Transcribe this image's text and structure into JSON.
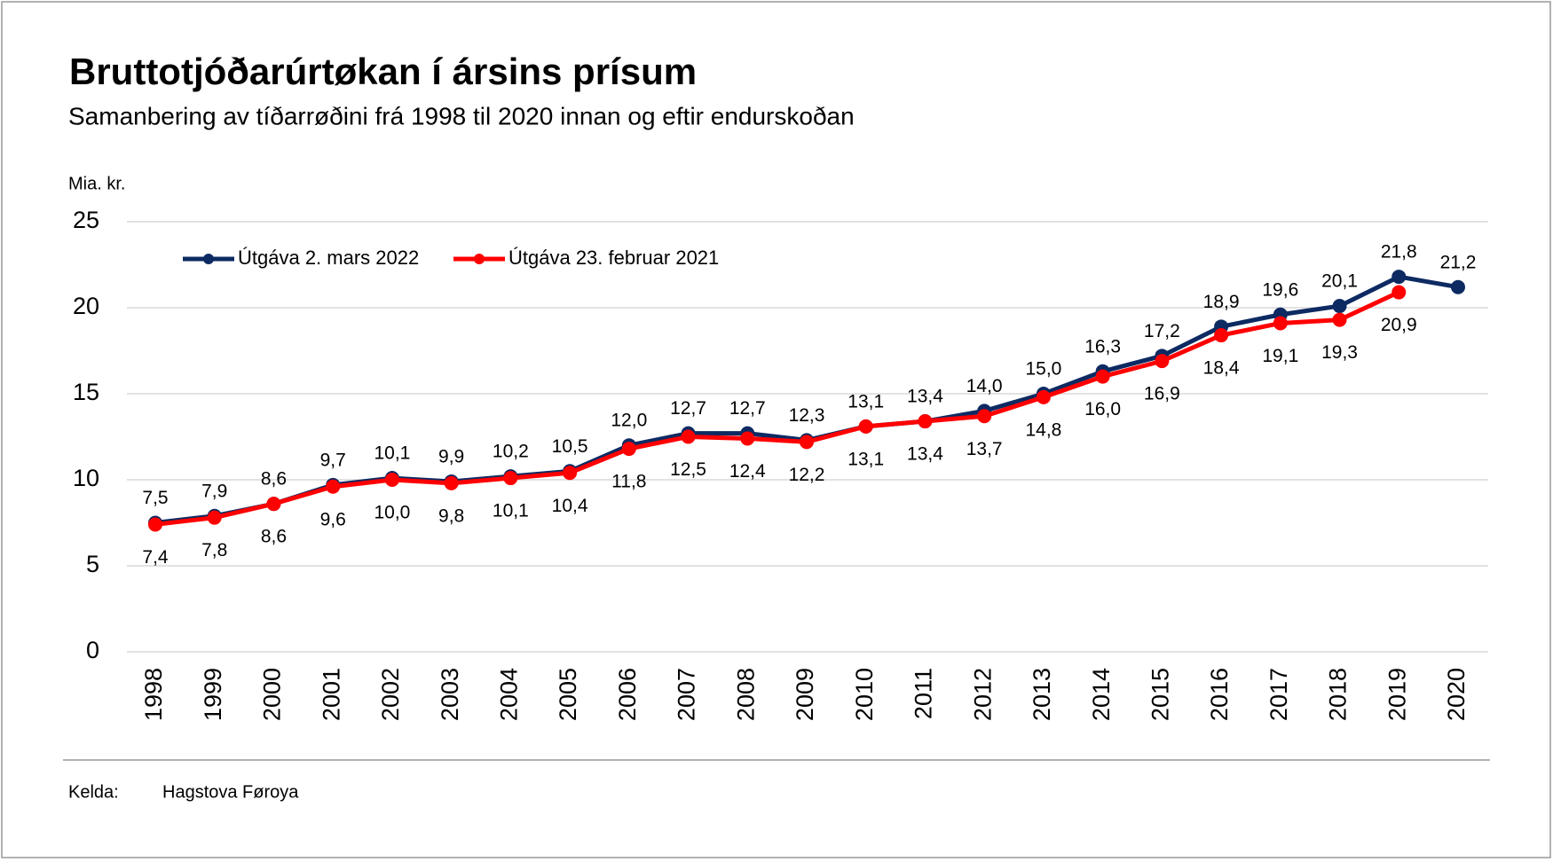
{
  "chart_data": {
    "type": "line",
    "title": "Bruttotjóðarúrtøkan í ársins prísum",
    "subtitle": "Samanbering av tíðarrøðini frá 1998 til 2020 innan og eftir endurskoðan",
    "y_label": "Mia. kr.",
    "categories": [
      "1998",
      "1999",
      "2000",
      "2001",
      "2002",
      "2003",
      "2004",
      "2005",
      "2006",
      "2007",
      "2008",
      "2009",
      "2010",
      "2011",
      "2012",
      "2013",
      "2014",
      "2015",
      "2016",
      "2017",
      "2018",
      "2019",
      "2020"
    ],
    "series": [
      {
        "name": "Útgáva 2. mars 2022",
        "color": "#0d2a62",
        "values": [
          7.5,
          7.9,
          8.6,
          9.7,
          10.1,
          9.9,
          10.2,
          10.5,
          12.0,
          12.7,
          12.7,
          12.3,
          13.1,
          13.4,
          14.0,
          15.0,
          16.3,
          17.2,
          18.9,
          19.6,
          20.1,
          21.8,
          21.2
        ],
        "value_labels": [
          "7,5",
          "7,9",
          "8,6",
          "9,7",
          "10,1",
          "9,9",
          "10,2",
          "10,5",
          "12,0",
          "12,7",
          "12,7",
          "12,3",
          "13,1",
          "13,4",
          "14,0",
          "15,0",
          "16,3",
          "17,2",
          "18,9",
          "19,6",
          "20,1",
          "21,8",
          "21,2"
        ]
      },
      {
        "name": "Útgáva 23. februar 2021",
        "color": "#ff0000",
        "values": [
          7.4,
          7.8,
          8.6,
          9.6,
          10.0,
          9.8,
          10.1,
          10.4,
          11.8,
          12.5,
          12.4,
          12.2,
          13.1,
          13.4,
          13.7,
          14.8,
          16.0,
          16.9,
          18.4,
          19.1,
          19.3,
          20.9,
          null
        ],
        "value_labels": [
          "7,4",
          "7,8",
          "8,6",
          "9,6",
          "10,0",
          "9,8",
          "10,1",
          "10,4",
          "11,8",
          "12,5",
          "12,4",
          "12,2",
          "13,1",
          "13,4",
          "13,7",
          "14,8",
          "16,0",
          "16,9",
          "18,4",
          "19,1",
          "19,3",
          "20,9",
          null
        ]
      }
    ],
    "ylim": [
      0,
      25
    ],
    "yticks": [
      0,
      5,
      10,
      15,
      20,
      25
    ],
    "grid": true,
    "legend": "top-left",
    "source_label": "Kelda:",
    "source": "Hagstova Føroya"
  }
}
